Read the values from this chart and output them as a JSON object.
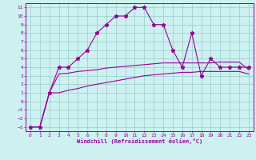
{
  "xlabel": "Windchill (Refroidissement éolien,°C)",
  "bg_color": "#cdf0f0",
  "grid_color": "#99cccc",
  "line_color": "#990099",
  "xlim": [
    -0.5,
    23.5
  ],
  "ylim": [
    -3.5,
    11.5
  ],
  "yticks": [
    -3,
    -2,
    -1,
    0,
    1,
    2,
    3,
    4,
    5,
    6,
    7,
    8,
    9,
    10,
    11
  ],
  "xticks": [
    0,
    1,
    2,
    3,
    4,
    5,
    6,
    7,
    8,
    9,
    10,
    11,
    12,
    13,
    14,
    15,
    16,
    17,
    18,
    19,
    20,
    21,
    22,
    23
  ],
  "main_x": [
    0,
    1,
    2,
    3,
    4,
    5,
    6,
    7,
    8,
    9,
    10,
    11,
    12,
    13,
    14,
    15,
    16,
    17,
    18,
    19,
    20,
    21,
    22,
    23
  ],
  "main_y": [
    -3,
    -3,
    1,
    4,
    4,
    5,
    6,
    8,
    9,
    10,
    10,
    11,
    11,
    9,
    9,
    6,
    4,
    8,
    3,
    5,
    4,
    4,
    4,
    4
  ],
  "trend1_x": [
    0,
    1,
    2,
    3,
    4,
    5,
    6,
    7,
    8,
    9,
    10,
    11,
    12,
    13,
    14,
    15,
    16,
    17,
    18,
    19,
    20,
    21,
    22,
    23
  ],
  "trend1_y": [
    -3,
    -3,
    1,
    3.2,
    3.3,
    3.5,
    3.6,
    3.7,
    3.9,
    4.0,
    4.1,
    4.2,
    4.3,
    4.4,
    4.5,
    4.5,
    4.5,
    4.5,
    4.5,
    4.5,
    4.6,
    4.6,
    4.6,
    3.7
  ],
  "trend2_x": [
    0,
    1,
    2,
    3,
    4,
    5,
    6,
    7,
    8,
    9,
    10,
    11,
    12,
    13,
    14,
    15,
    16,
    17,
    18,
    19,
    20,
    21,
    22,
    23
  ],
  "trend2_y": [
    -3,
    -3,
    1,
    1.0,
    1.3,
    1.5,
    1.8,
    2.0,
    2.2,
    2.4,
    2.6,
    2.8,
    3.0,
    3.1,
    3.2,
    3.3,
    3.4,
    3.4,
    3.5,
    3.5,
    3.5,
    3.5,
    3.5,
    3.2
  ]
}
